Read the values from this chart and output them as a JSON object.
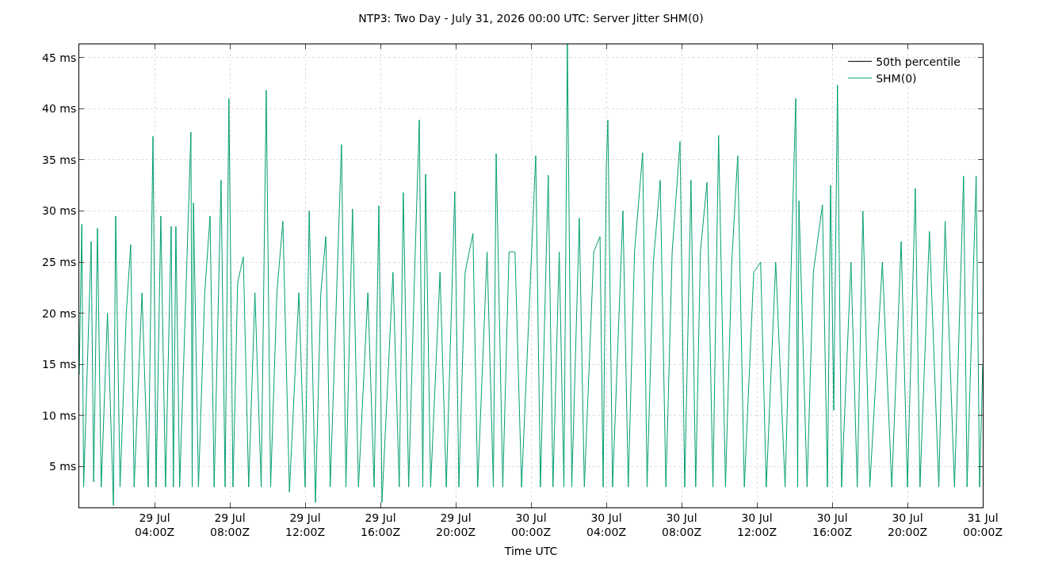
{
  "chart_data": {
    "type": "line",
    "title": "NTP3: Two Day - July 31, 2026 00:00 UTC: Server Jitter SHM(0)",
    "xlabel": "Time UTC",
    "xlim": [
      "2026-07-29T00:00",
      "2026-07-31T00:00"
    ],
    "xticks": [
      {
        "value": "2026-07-29T04:00",
        "label": "29 Jul\n04:00Z"
      },
      {
        "value": "2026-07-29T08:00",
        "label": "29 Jul\n08:00Z"
      },
      {
        "value": "2026-07-29T12:00",
        "label": "29 Jul\n12:00Z"
      },
      {
        "value": "2026-07-29T16:00",
        "label": "29 Jul\n16:00Z"
      },
      {
        "value": "2026-07-29T20:00",
        "label": "29 Jul\n20:00Z"
      },
      {
        "value": "2026-07-30T00:00",
        "label": "30 Jul\n00:00Z"
      },
      {
        "value": "2026-07-30T04:00",
        "label": "30 Jul\n04:00Z"
      },
      {
        "value": "2026-07-30T08:00",
        "label": "30 Jul\n08:00Z"
      },
      {
        "value": "2026-07-30T12:00",
        "label": "30 Jul\n12:00Z"
      },
      {
        "value": "2026-07-30T16:00",
        "label": "30 Jul\n16:00Z"
      },
      {
        "value": "2026-07-30T20:00",
        "label": "30 Jul\n20:00Z"
      },
      {
        "value": "2026-07-31T00:00",
        "label": "31 Jul\n00:00Z"
      }
    ],
    "ylim": [
      1,
      46.3
    ],
    "yticks": [
      {
        "value": 5,
        "label": "5 ms"
      },
      {
        "value": 10,
        "label": "10 ms"
      },
      {
        "value": 15,
        "label": "15 ms"
      },
      {
        "value": 20,
        "label": "20 ms"
      },
      {
        "value": 25,
        "label": "25 ms"
      },
      {
        "value": 30,
        "label": "30 ms"
      },
      {
        "value": 35,
        "label": "35 ms"
      },
      {
        "value": 40,
        "label": "40 ms"
      },
      {
        "value": 45,
        "label": "45 ms"
      }
    ],
    "grid": true,
    "legend": "top right",
    "line_style": "solid",
    "marker": "none",
    "series": [
      {
        "name": "50th percentile",
        "color": "#000000",
        "values": [
          null
        ]
      },
      {
        "name": "SHM(0)",
        "color": "#009e73",
        "x": [
          "2026-07-29T00:00",
          "2026-07-29T00:08",
          "2026-07-29T00:14",
          "2026-07-29T00:38",
          "2026-07-29T00:46",
          "2026-07-29T00:58",
          "2026-07-29T01:10",
          "2026-07-29T01:30",
          "2026-07-29T01:49",
          "2026-07-29T01:56",
          "2026-07-29T02:10",
          "2026-07-29T02:30",
          "2026-07-29T02:44",
          "2026-07-29T02:55",
          "2026-07-29T03:20",
          "2026-07-29T03:40",
          "2026-07-29T03:55",
          "2026-07-29T04:05",
          "2026-07-29T04:20",
          "2026-07-29T04:35",
          "2026-07-29T04:53",
          "2026-07-29T05:00",
          "2026-07-29T05:08",
          "2026-07-29T05:20",
          "2026-07-29T05:40",
          "2026-07-29T05:56",
          "2026-07-29T06:00",
          "2026-07-29T06:04",
          "2026-07-29T06:20",
          "2026-07-29T06:40",
          "2026-07-29T06:57",
          "2026-07-29T07:10",
          "2026-07-29T07:32",
          "2026-07-29T07:45",
          "2026-07-29T07:57",
          "2026-07-29T08:10",
          "2026-07-29T08:25",
          "2026-07-29T08:43",
          "2026-07-29T09:00",
          "2026-07-29T09:20",
          "2026-07-29T09:40",
          "2026-07-29T09:56",
          "2026-07-29T10:10",
          "2026-07-29T10:30",
          "2026-07-29T10:49",
          "2026-07-29T11:10",
          "2026-07-29T11:40",
          "2026-07-29T12:00",
          "2026-07-29T12:13",
          "2026-07-29T12:33",
          "2026-07-29T12:50",
          "2026-07-29T13:06",
          "2026-07-29T13:20",
          "2026-07-29T13:56",
          "2026-07-29T14:10",
          "2026-07-29T14:31",
          "2026-07-29T14:50",
          "2026-07-29T15:20",
          "2026-07-29T15:40",
          "2026-07-29T15:55",
          "2026-07-29T16:05",
          "2026-07-29T16:40",
          "2026-07-29T17:00",
          "2026-07-29T17:13",
          "2026-07-29T17:30",
          "2026-07-29T17:50",
          "2026-07-29T18:04",
          "2026-07-29T18:15",
          "2026-07-29T18:24",
          "2026-07-29T18:40",
          "2026-07-29T19:10",
          "2026-07-29T19:30",
          "2026-07-29T19:57",
          "2026-07-29T20:10",
          "2026-07-29T20:30",
          "2026-07-29T20:55",
          "2026-07-29T21:10",
          "2026-07-29T21:40",
          "2026-07-29T22:00",
          "2026-07-29T22:09",
          "2026-07-29T22:30",
          "2026-07-29T22:50",
          "2026-07-29T23:09",
          "2026-07-29T23:30",
          "2026-07-30T00:15",
          "2026-07-30T00:30",
          "2026-07-30T00:55",
          "2026-07-30T01:10",
          "2026-07-30T01:30",
          "2026-07-30T01:45",
          "2026-07-30T01:56",
          "2026-07-30T02:10",
          "2026-07-30T02:34",
          "2026-07-30T02:50",
          "2026-07-30T03:20",
          "2026-07-30T03:40",
          "2026-07-30T03:50",
          "2026-07-30T04:00",
          "2026-07-30T04:05",
          "2026-07-30T04:20",
          "2026-07-30T04:53",
          "2026-07-30T05:10",
          "2026-07-30T05:30",
          "2026-07-30T05:56",
          "2026-07-30T06:10",
          "2026-07-30T06:30",
          "2026-07-30T06:52",
          "2026-07-30T07:10",
          "2026-07-30T07:30",
          "2026-07-30T07:55",
          "2026-07-30T08:10",
          "2026-07-30T08:30",
          "2026-07-30T08:45",
          "2026-07-30T09:00",
          "2026-07-30T09:21",
          "2026-07-30T09:40",
          "2026-07-30T09:58",
          "2026-07-30T10:20",
          "2026-07-30T10:40",
          "2026-07-30T10:59",
          "2026-07-30T11:20",
          "2026-07-30T11:50",
          "2026-07-30T12:12",
          "2026-07-30T12:30",
          "2026-07-30T13:00",
          "2026-07-30T13:30",
          "2026-07-30T14:04",
          "2026-07-30T14:10",
          "2026-07-30T14:14",
          "2026-07-30T14:40",
          "2026-07-30T15:00",
          "2026-07-30T15:29",
          "2026-07-30T15:45",
          "2026-07-30T15:55",
          "2026-07-30T16:05",
          "2026-07-30T16:17",
          "2026-07-30T16:30",
          "2026-07-30T17:00",
          "2026-07-30T17:20",
          "2026-07-30T17:38",
          "2026-07-30T18:00",
          "2026-07-30T18:40",
          "2026-07-30T19:10",
          "2026-07-30T19:40",
          "2026-07-30T20:00",
          "2026-07-30T20:25",
          "2026-07-30T20:40",
          "2026-07-30T21:10",
          "2026-07-30T21:40",
          "2026-07-30T22:00",
          "2026-07-30T22:30",
          "2026-07-30T22:59",
          "2026-07-30T23:10",
          "2026-07-30T23:39",
          "2026-07-30T23:50",
          "2026-07-31T00:00"
        ],
        "values": [
          14,
          28.7,
          3,
          27,
          3.5,
          28.3,
          3,
          20,
          1.2,
          29.5,
          3,
          20,
          26.7,
          3,
          22,
          3,
          37.3,
          3,
          29.5,
          3,
          28.5,
          3,
          28.5,
          3,
          22,
          37.7,
          3,
          30.8,
          3,
          22,
          29.5,
          3,
          33,
          3,
          41,
          3,
          23,
          25.5,
          3,
          22,
          3,
          41.8,
          3,
          22,
          29,
          2.5,
          22,
          3,
          30,
          1.5,
          22,
          27.5,
          3,
          36.5,
          3,
          30.2,
          3,
          22,
          3,
          30.5,
          1.5,
          24,
          3,
          31.8,
          3,
          25,
          38.9,
          3,
          33.6,
          3,
          24,
          3,
          31.9,
          3,
          24,
          27.8,
          3,
          26,
          3,
          35.6,
          3,
          26,
          26,
          3,
          35.4,
          3,
          33.5,
          3,
          26,
          3,
          46.3,
          3,
          29.3,
          3,
          26,
          27.5,
          3,
          34.3,
          38.9,
          3,
          30,
          3,
          26,
          35.7,
          3,
          25,
          33,
          3,
          26,
          36.8,
          3,
          33,
          3,
          26,
          32.8,
          3,
          37.4,
          3,
          25,
          35.4,
          3,
          24,
          25,
          3,
          25,
          3,
          41,
          3,
          31,
          3,
          24,
          30.6,
          3,
          32.5,
          10.5,
          42.3,
          3,
          25,
          3,
          30,
          3,
          25,
          3,
          27,
          3,
          32.2,
          3,
          28,
          3,
          29,
          3,
          33.4,
          3,
          33.4,
          3,
          15
        ]
      }
    ]
  }
}
